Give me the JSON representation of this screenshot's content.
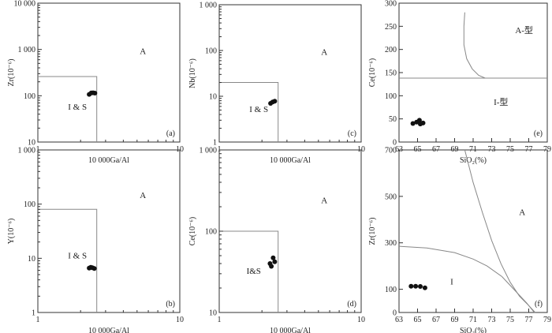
{
  "chart_data": [
    {
      "id": "a",
      "type": "scatter",
      "panel_label": "(a)",
      "xlabel": "10 000Ga/Al",
      "ylabel": "Zr(10⁻⁶)",
      "xscale": "log",
      "yscale": "log",
      "xlim": [
        1,
        10
      ],
      "ylim": [
        10,
        10000
      ],
      "xticks": [
        {
          "v": 1,
          "label": "1"
        },
        {
          "v": 10,
          "label": "10"
        }
      ],
      "yticks": [
        {
          "v": 10,
          "label": "10"
        },
        {
          "v": 100,
          "label": "100"
        },
        {
          "v": 1000,
          "label": "1 000"
        },
        {
          "v": 10000,
          "label": "10 000"
        }
      ],
      "fields": [
        {
          "label": "A",
          "x": 5.5,
          "y": 800
        },
        {
          "label": "I & S",
          "x": 1.9,
          "y": 50
        }
      ],
      "boundary_lines": [
        [
          [
            1,
            260
          ],
          [
            2.6,
            260
          ],
          [
            2.6,
            10
          ]
        ]
      ],
      "points": [
        {
          "x": 2.3,
          "y": 107
        },
        {
          "x": 2.38,
          "y": 115
        },
        {
          "x": 2.45,
          "y": 116
        },
        {
          "x": 2.52,
          "y": 114
        }
      ]
    },
    {
      "id": "c",
      "type": "scatter",
      "panel_label": "(c)",
      "xlabel": "10 000Ga/Al",
      "ylabel": "Nb(10⁻⁶)",
      "xscale": "log",
      "yscale": "log",
      "xlim": [
        1,
        10
      ],
      "ylim": [
        1,
        1000
      ],
      "xticks": [
        {
          "v": 1,
          "label": "1"
        },
        {
          "v": 10,
          "label": "10"
        }
      ],
      "yticks": [
        {
          "v": 1,
          "label": "1"
        },
        {
          "v": 10,
          "label": "10"
        },
        {
          "v": 100,
          "label": "100"
        },
        {
          "v": 1000,
          "label": "1 000"
        }
      ],
      "fields": [
        {
          "label": "A",
          "x": 5.5,
          "y": 80
        },
        {
          "label": "I & S",
          "x": 1.9,
          "y": 4.5
        }
      ],
      "boundary_lines": [
        [
          [
            1,
            20
          ],
          [
            2.6,
            20
          ],
          [
            2.6,
            1
          ]
        ]
      ],
      "points": [
        {
          "x": 2.3,
          "y": 7
        },
        {
          "x": 2.38,
          "y": 7.5
        },
        {
          "x": 2.46,
          "y": 7.8
        }
      ]
    },
    {
      "id": "e",
      "type": "scatter",
      "panel_label": "(e)",
      "xlabel": "SiO₂(%)",
      "ylabel": "Ce(10⁻⁶)",
      "xlim": [
        63,
        79
      ],
      "ylim": [
        0,
        300
      ],
      "xticks": [
        63,
        65,
        67,
        69,
        71,
        73,
        75,
        77,
        79
      ],
      "yticks": [
        0,
        50,
        100,
        150,
        200,
        250,
        300
      ],
      "fields": [
        {
          "label": "A-型",
          "x": 76.5,
          "y": 235
        },
        {
          "label": "I-型",
          "x": 74,
          "y": 80
        }
      ],
      "boundary_lines": [
        [
          [
            63,
            138
          ],
          [
            79,
            138
          ]
        ],
        [
          [
            70.1,
            280
          ],
          [
            70.0,
            250
          ],
          [
            70.0,
            210
          ],
          [
            70.3,
            180
          ],
          [
            70.9,
            158
          ],
          [
            71.6,
            144
          ],
          [
            72.3,
            138
          ]
        ]
      ],
      "points": [
        {
          "x": 64.5,
          "y": 40
        },
        {
          "x": 64.9,
          "y": 43
        },
        {
          "x": 65.2,
          "y": 47
        },
        {
          "x": 65.3,
          "y": 39
        },
        {
          "x": 65.6,
          "y": 41
        }
      ]
    },
    {
      "id": "b",
      "type": "scatter",
      "panel_label": "(b)",
      "xlabel": "10 000Ga/Al",
      "ylabel": "Y(10⁻⁶)",
      "xscale": "log",
      "yscale": "log",
      "xlim": [
        1,
        10
      ],
      "ylim": [
        1,
        1000
      ],
      "xticks": [
        {
          "v": 1,
          "label": "1"
        },
        {
          "v": 10,
          "label": "10"
        }
      ],
      "yticks": [
        {
          "v": 1,
          "label": "1"
        },
        {
          "v": 10,
          "label": "10"
        },
        {
          "v": 100,
          "label": "100"
        },
        {
          "v": 1000,
          "label": "1 000"
        }
      ],
      "fields": [
        {
          "label": "A",
          "x": 5.5,
          "y": 130
        },
        {
          "label": "I & S",
          "x": 1.9,
          "y": 10
        }
      ],
      "boundary_lines": [
        [
          [
            1,
            80
          ],
          [
            2.6,
            80
          ],
          [
            2.6,
            1
          ]
        ]
      ],
      "points": [
        {
          "x": 2.3,
          "y": 6.6
        },
        {
          "x": 2.36,
          "y": 6.8
        },
        {
          "x": 2.42,
          "y": 6.7
        },
        {
          "x": 2.5,
          "y": 6.5
        }
      ]
    },
    {
      "id": "d",
      "type": "scatter",
      "panel_label": "(d)",
      "xlabel": "10 000Ga/Al",
      "ylabel": "Ce(10⁻⁶)",
      "xscale": "log",
      "yscale": "log",
      "xlim": [
        1,
        10
      ],
      "ylim": [
        10,
        1000
      ],
      "xticks": [
        {
          "v": 1,
          "label": "1"
        },
        {
          "v": 10,
          "label": "10"
        }
      ],
      "yticks": [
        {
          "v": 10,
          "label": "10"
        },
        {
          "v": 100,
          "label": "100"
        },
        {
          "v": 1000,
          "label": "1 000"
        }
      ],
      "fields": [
        {
          "label": "A",
          "x": 5.5,
          "y": 220
        },
        {
          "label": "I&S",
          "x": 1.75,
          "y": 30
        }
      ],
      "boundary_lines": [
        [
          [
            1,
            100
          ],
          [
            2.6,
            100
          ],
          [
            2.6,
            10
          ]
        ]
      ],
      "points": [
        {
          "x": 2.28,
          "y": 40
        },
        {
          "x": 2.33,
          "y": 37
        },
        {
          "x": 2.4,
          "y": 47
        },
        {
          "x": 2.46,
          "y": 42
        }
      ]
    },
    {
      "id": "f",
      "type": "scatter",
      "panel_label": "(f)",
      "xlabel": "SiO₂(%)",
      "ylabel": "Zr(10⁻⁶)",
      "xlim": [
        63,
        79
      ],
      "ylim": [
        0,
        700
      ],
      "xticks": [
        63,
        65,
        67,
        69,
        71,
        73,
        75,
        77,
        79
      ],
      "yticks": [
        0,
        100,
        300,
        500,
        700
      ],
      "fields": [
        {
          "label": "A",
          "x": 76.3,
          "y": 420
        },
        {
          "label": "I",
          "x": 68.7,
          "y": 120
        }
      ],
      "boundary_lines": [
        [
          [
            70.1,
            700
          ],
          [
            71.0,
            560
          ],
          [
            72.0,
            430
          ],
          [
            73.0,
            310
          ],
          [
            74.0,
            210
          ],
          [
            75.0,
            130
          ],
          [
            76.0,
            70
          ],
          [
            77.0,
            30
          ],
          [
            77.7,
            0
          ]
        ],
        [
          [
            63,
            285
          ],
          [
            66,
            278
          ],
          [
            69,
            258
          ],
          [
            71,
            230
          ],
          [
            72.5,
            200
          ],
          [
            74.1,
            155
          ]
        ],
        [
          [
            74.1,
            155
          ],
          [
            75.5,
            95
          ],
          [
            76.8,
            40
          ],
          [
            77.6,
            0
          ]
        ]
      ],
      "points": [
        {
          "x": 64.3,
          "y": 113
        },
        {
          "x": 64.8,
          "y": 113
        },
        {
          "x": 65.3,
          "y": 112
        },
        {
          "x": 65.8,
          "y": 106
        }
      ]
    }
  ]
}
